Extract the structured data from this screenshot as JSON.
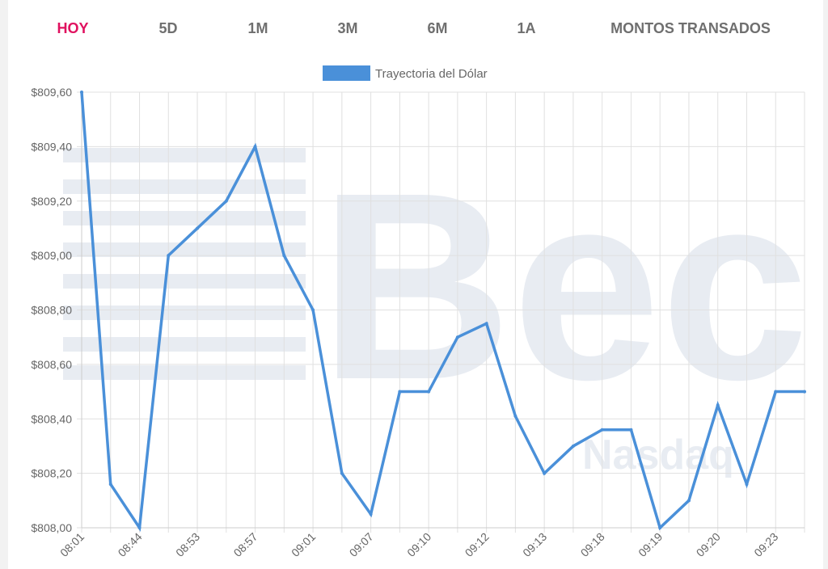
{
  "tabs": [
    {
      "label": "HOY",
      "active": true
    },
    {
      "label": "5D",
      "active": false
    },
    {
      "label": "1M",
      "active": false
    },
    {
      "label": "3M",
      "active": false
    },
    {
      "label": "6M",
      "active": false
    },
    {
      "label": "1A",
      "active": false
    },
    {
      "label": "MONTOS TRANSADOS",
      "active": false
    }
  ],
  "colors": {
    "accent": "#e0115f",
    "tab_text": "#6f6f6f",
    "line": "#4a90d9",
    "grid": "#e0e0e0",
    "watermark": "#e8ecf2"
  },
  "watermark": {
    "main": "Bec",
    "sub": "Nasdaq"
  },
  "chart_data": {
    "type": "line",
    "legend": {
      "label": "Trayectoria del Dólar",
      "position": "top"
    },
    "ylim": [
      808.0,
      809.6
    ],
    "y_ticks": [
      "$809,60",
      "$809,40",
      "$809,20",
      "$809,00",
      "$808,80",
      "$808,60",
      "$808,40",
      "$808,20",
      "$808,00"
    ],
    "x_tick_labels": [
      "08:01",
      "08:44",
      "08:53",
      "08:57",
      "09:01",
      "09:07",
      "09:10",
      "09:12",
      "09:13",
      "09:18",
      "09:19",
      "09:20",
      "09:23"
    ],
    "grid": true,
    "series": [
      {
        "name": "Trayectoria del Dólar",
        "values": [
          809.6,
          808.16,
          808.0,
          809.0,
          809.1,
          809.2,
          809.4,
          809.0,
          808.8,
          808.2,
          808.05,
          808.5,
          808.5,
          808.7,
          808.75,
          808.41,
          808.2,
          808.3,
          808.36,
          808.36,
          808.0,
          808.1,
          808.45,
          808.16,
          808.5,
          808.5
        ]
      }
    ]
  }
}
